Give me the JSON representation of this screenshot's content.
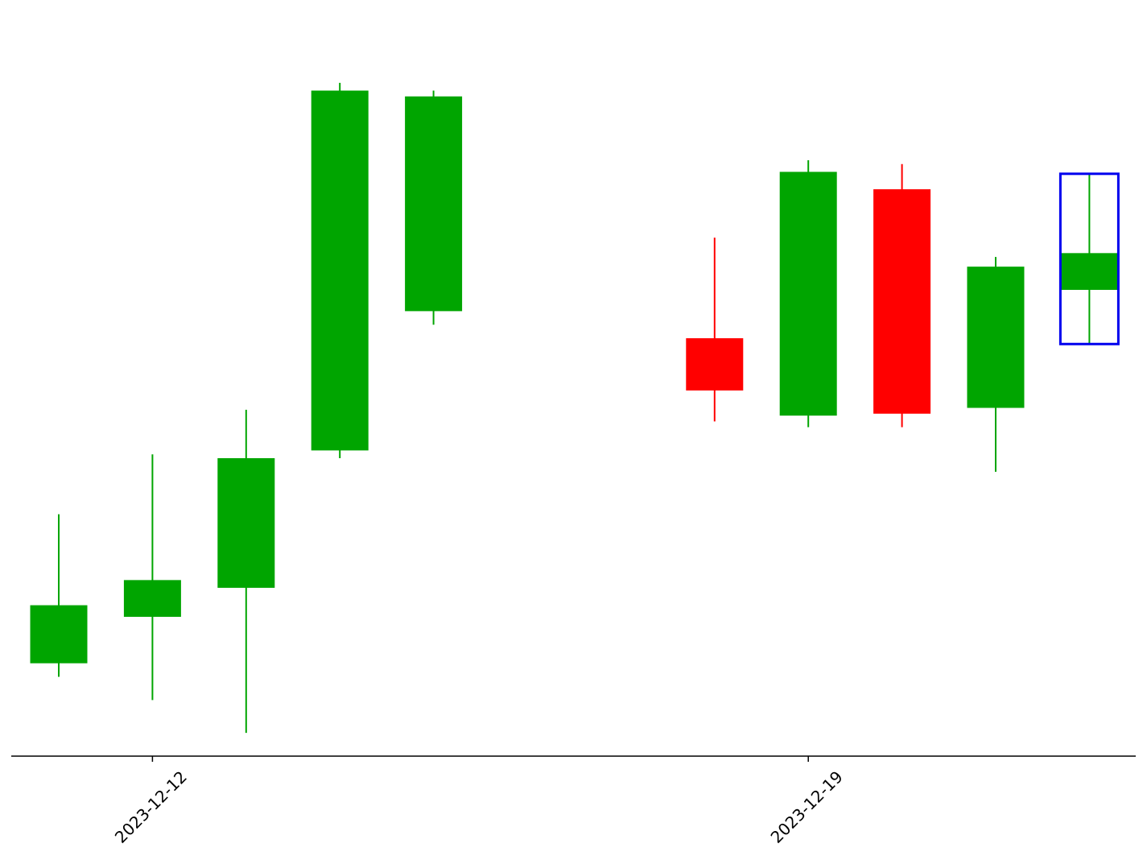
{
  "chart_data": {
    "type": "candlestick",
    "title": "",
    "xlabel": "",
    "ylabel": "",
    "x_tick_labels": [
      "2023-12-12",
      "2023-12-19"
    ],
    "x_tick_dates": [
      "2023-12-12",
      "2023-12-19"
    ],
    "ylim": [
      61.5,
      100
    ],
    "grid": false,
    "legend": "none",
    "colors": {
      "up": "#00a500",
      "down": "#ff0000",
      "highlight": "#0000ee",
      "axis": "#000000"
    },
    "candles": [
      {
        "date": "2023-12-11",
        "open": 66.3,
        "high": 74.0,
        "low": 65.6,
        "close": 69.3
      },
      {
        "date": "2023-12-12",
        "open": 68.7,
        "high": 77.1,
        "low": 64.4,
        "close": 70.6
      },
      {
        "date": "2023-12-13",
        "open": 70.2,
        "high": 79.4,
        "low": 62.7,
        "close": 76.9
      },
      {
        "date": "2023-12-14",
        "open": 77.3,
        "high": 96.3,
        "low": 76.9,
        "close": 95.9
      },
      {
        "date": "2023-12-15",
        "open": 84.5,
        "high": 95.9,
        "low": 83.8,
        "close": 95.6
      },
      {
        "date": "2023-12-18",
        "open": 83.1,
        "high": 88.3,
        "low": 78.8,
        "close": 80.4
      },
      {
        "date": "2023-12-19",
        "open": 79.1,
        "high": 92.3,
        "low": 78.5,
        "close": 91.7
      },
      {
        "date": "2023-12-20",
        "open": 90.8,
        "high": 92.1,
        "low": 78.5,
        "close": 79.2
      },
      {
        "date": "2023-12-21",
        "open": 79.5,
        "high": 87.3,
        "low": 76.2,
        "close": 86.8
      },
      {
        "date": "2023-12-22",
        "open": 85.6,
        "high": 91.6,
        "low": 82.8,
        "close": 87.5
      }
    ],
    "highlighted_candle": "2023-12-22"
  }
}
